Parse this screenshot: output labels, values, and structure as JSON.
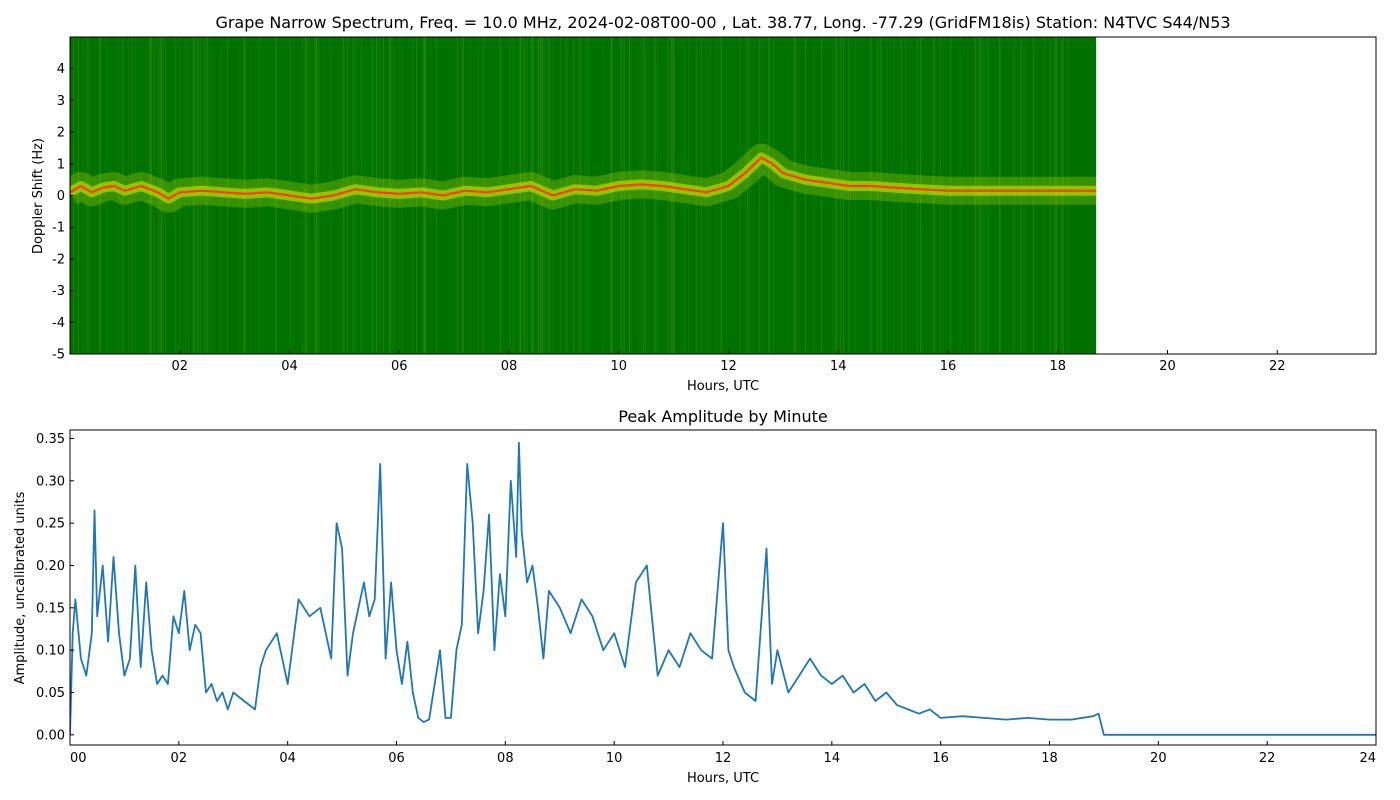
{
  "chart_data": [
    {
      "type": "heatmap",
      "title": "Grape Narrow Spectrum, Freq. = 10.0 MHz, 2024-02-08T00-00 , Lat.  38.77, Long. -77.29 (GridFM18is) Station: N4TVC S44/N53",
      "xlabel": "Hours, UTC",
      "ylabel": "Doppler Shift (Hz)",
      "xlim": [
        0,
        23.8
      ],
      "ylim": [
        -5,
        5
      ],
      "data_extent_hours": [
        0,
        18.7
      ],
      "x_ticks": [
        "02",
        "04",
        "06",
        "08",
        "10",
        "12",
        "14",
        "16",
        "18",
        "20",
        "22"
      ],
      "x_tick_values": [
        2,
        4,
        6,
        8,
        10,
        12,
        14,
        16,
        18,
        20,
        22
      ],
      "y_ticks": [
        "4",
        "3",
        "2",
        "1",
        "0",
        "-1",
        "-2",
        "-3",
        "-4",
        "-5"
      ],
      "y_tick_values": [
        4,
        3,
        2,
        1,
        0,
        -1,
        -2,
        -3,
        -4,
        -5
      ],
      "colors": {
        "background": "#007200",
        "mid": "#d8f000",
        "peak": "#ff3a00"
      },
      "peak_trace": {
        "x": [
          0,
          0.2,
          0.4,
          0.6,
          0.8,
          1.0,
          1.3,
          1.6,
          1.8,
          2.0,
          2.4,
          2.8,
          3.2,
          3.6,
          4.0,
          4.4,
          4.8,
          5.2,
          5.6,
          6.0,
          6.4,
          6.8,
          7.2,
          7.6,
          8.0,
          8.4,
          8.8,
          9.2,
          9.6,
          10.0,
          10.4,
          10.8,
          11.2,
          11.6,
          12.0,
          12.3,
          12.6,
          12.8,
          13.0,
          13.4,
          13.8,
          14.2,
          14.6,
          15.0,
          15.5,
          16.0,
          17.0,
          18.0,
          18.7
        ],
        "y": [
          0.1,
          0.3,
          0.1,
          0.25,
          0.3,
          0.15,
          0.3,
          0.1,
          -0.1,
          0.1,
          0.15,
          0.1,
          0.05,
          0.1,
          0.0,
          -0.1,
          0.0,
          0.2,
          0.1,
          0.05,
          0.1,
          0.0,
          0.15,
          0.1,
          0.2,
          0.3,
          0.0,
          0.2,
          0.15,
          0.3,
          0.35,
          0.3,
          0.2,
          0.1,
          0.3,
          0.7,
          1.2,
          1.0,
          0.7,
          0.5,
          0.4,
          0.3,
          0.3,
          0.25,
          0.2,
          0.15,
          0.15,
          0.15,
          0.15
        ]
      }
    },
    {
      "type": "line",
      "title": "Peak Amplitude by Minute",
      "xlabel": "Hours, UTC",
      "ylabel": "Amplitude, uncalibrated units",
      "xlim": [
        0,
        24
      ],
      "ylim": [
        -0.012,
        0.36
      ],
      "x_ticks": [
        "00",
        "02",
        "04",
        "06",
        "08",
        "10",
        "12",
        "14",
        "16",
        "18",
        "20",
        "22",
        "24"
      ],
      "x_tick_values": [
        0,
        2,
        4,
        6,
        8,
        10,
        12,
        14,
        16,
        18,
        20,
        22,
        24
      ],
      "y_ticks": [
        "0.35",
        "0.30",
        "0.25",
        "0.20",
        "0.15",
        "0.10",
        "0.05",
        "0.00"
      ],
      "y_tick_values": [
        0.35,
        0.3,
        0.25,
        0.2,
        0.15,
        0.1,
        0.05,
        0.0
      ],
      "line_color": "#1f77b4",
      "x": [
        0,
        0.05,
        0.1,
        0.2,
        0.3,
        0.4,
        0.45,
        0.5,
        0.6,
        0.7,
        0.8,
        0.9,
        1.0,
        1.1,
        1.2,
        1.3,
        1.4,
        1.5,
        1.6,
        1.7,
        1.8,
        1.9,
        2.0,
        2.1,
        2.2,
        2.3,
        2.4,
        2.5,
        2.6,
        2.7,
        2.8,
        2.9,
        3.0,
        3.2,
        3.4,
        3.5,
        3.6,
        3.8,
        4.0,
        4.2,
        4.4,
        4.6,
        4.8,
        4.9,
        5.0,
        5.1,
        5.2,
        5.4,
        5.5,
        5.6,
        5.7,
        5.8,
        5.9,
        6.0,
        6.1,
        6.2,
        6.3,
        6.4,
        6.5,
        6.6,
        6.8,
        6.9,
        7.0,
        7.1,
        7.2,
        7.3,
        7.4,
        7.5,
        7.6,
        7.7,
        7.8,
        7.9,
        8.0,
        8.1,
        8.2,
        8.25,
        8.3,
        8.4,
        8.5,
        8.6,
        8.7,
        8.8,
        9.0,
        9.2,
        9.4,
        9.6,
        9.8,
        10.0,
        10.2,
        10.4,
        10.6,
        10.8,
        11.0,
        11.2,
        11.4,
        11.6,
        11.8,
        12.0,
        12.1,
        12.2,
        12.4,
        12.6,
        12.8,
        12.9,
        13.0,
        13.2,
        13.4,
        13.6,
        13.8,
        14.0,
        14.2,
        14.4,
        14.6,
        14.8,
        15.0,
        15.2,
        15.4,
        15.6,
        15.8,
        16.0,
        16.4,
        16.8,
        17.2,
        17.6,
        18.0,
        18.4,
        18.8,
        18.9,
        19.0,
        20.0,
        22.0,
        24.0
      ],
      "y": [
        0.0,
        0.12,
        0.16,
        0.09,
        0.07,
        0.12,
        0.265,
        0.14,
        0.2,
        0.11,
        0.21,
        0.12,
        0.07,
        0.09,
        0.2,
        0.08,
        0.18,
        0.1,
        0.06,
        0.07,
        0.06,
        0.14,
        0.12,
        0.17,
        0.1,
        0.13,
        0.12,
        0.05,
        0.06,
        0.04,
        0.05,
        0.03,
        0.05,
        0.04,
        0.03,
        0.08,
        0.1,
        0.12,
        0.06,
        0.16,
        0.14,
        0.15,
        0.09,
        0.25,
        0.22,
        0.07,
        0.12,
        0.18,
        0.14,
        0.16,
        0.32,
        0.09,
        0.18,
        0.1,
        0.06,
        0.11,
        0.05,
        0.02,
        0.015,
        0.018,
        0.1,
        0.02,
        0.02,
        0.1,
        0.13,
        0.32,
        0.25,
        0.12,
        0.17,
        0.26,
        0.1,
        0.19,
        0.14,
        0.3,
        0.21,
        0.345,
        0.24,
        0.18,
        0.2,
        0.15,
        0.09,
        0.17,
        0.15,
        0.12,
        0.16,
        0.14,
        0.1,
        0.12,
        0.08,
        0.18,
        0.2,
        0.07,
        0.1,
        0.08,
        0.12,
        0.1,
        0.09,
        0.25,
        0.1,
        0.08,
        0.05,
        0.04,
        0.22,
        0.06,
        0.1,
        0.05,
        0.07,
        0.09,
        0.07,
        0.06,
        0.07,
        0.05,
        0.06,
        0.04,
        0.05,
        0.035,
        0.03,
        0.025,
        0.03,
        0.02,
        0.022,
        0.02,
        0.018,
        0.02,
        0.018,
        0.018,
        0.022,
        0.025,
        0.0,
        0.0,
        0.0,
        0.0
      ]
    }
  ]
}
